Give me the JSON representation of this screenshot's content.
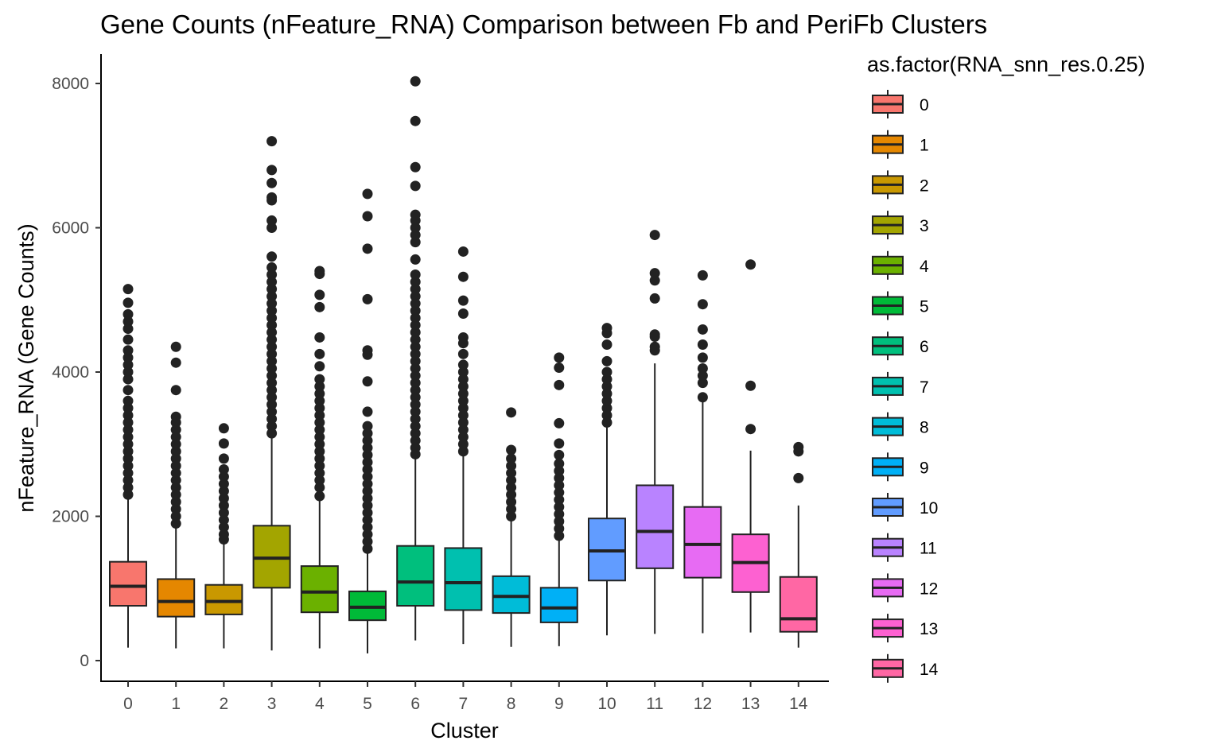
{
  "chart_data": {
    "type": "box",
    "title": "Gene Counts (nFeature_RNA) Comparison between Fb and PeriFb Clusters",
    "xlabel": "Cluster",
    "ylabel": "nFeature_RNA (Gene Counts)",
    "ylim": [
      -300,
      8300
    ],
    "yticks": [
      0,
      2000,
      4000,
      6000,
      8000
    ],
    "grid": false,
    "legend": {
      "title": "as.factor(RNA_snn_res.0.25)",
      "position": "right"
    },
    "categories": [
      "0",
      "1",
      "2",
      "3",
      "4",
      "5",
      "6",
      "7",
      "8",
      "9",
      "10",
      "11",
      "12",
      "13",
      "14"
    ],
    "colors": [
      "#F8766D",
      "#E58700",
      "#C99800",
      "#A3A500",
      "#6BB100",
      "#00BA38",
      "#00BF7D",
      "#00C0AF",
      "#00BCD8",
      "#00B0F6",
      "#619CFF",
      "#B983FF",
      "#E76BF3",
      "#FD61D1",
      "#FF67A4"
    ],
    "boxes": [
      {
        "cluster": "0",
        "min": 180,
        "q1": 760,
        "median": 1030,
        "q3": 1370,
        "max": 2260,
        "outliers": [
          2300,
          2400,
          2500,
          2600,
          2700,
          2800,
          2900,
          3000,
          3100,
          3200,
          3300,
          3400,
          3500,
          3600,
          3750,
          3900,
          4000,
          4100,
          4200,
          4300,
          4450,
          4600,
          4700,
          4800,
          4960,
          5150
        ]
      },
      {
        "cluster": "1",
        "min": 170,
        "q1": 610,
        "median": 820,
        "q3": 1130,
        "max": 1880,
        "outliers": [
          1900,
          2000,
          2100,
          2200,
          2300,
          2400,
          2500,
          2600,
          2700,
          2800,
          2900,
          3000,
          3100,
          3200,
          3300,
          3380,
          3750,
          4130,
          4350
        ]
      },
      {
        "cluster": "2",
        "min": 170,
        "q1": 640,
        "median": 820,
        "q3": 1050,
        "max": 1640,
        "outliers": [
          1680,
          1750,
          1850,
          1950,
          2050,
          2150,
          2250,
          2350,
          2450,
          2550,
          2650,
          2800,
          3010,
          3220
        ]
      },
      {
        "cluster": "3",
        "min": 140,
        "q1": 1010,
        "median": 1420,
        "q3": 1870,
        "max": 3120,
        "outliers": [
          3150,
          3250,
          3350,
          3450,
          3550,
          3650,
          3750,
          3850,
          3950,
          4050,
          4150,
          4250,
          4350,
          4450,
          4550,
          4650,
          4750,
          4850,
          4950,
          5050,
          5150,
          5250,
          5350,
          5450,
          5600,
          6000,
          6100,
          6380,
          6420,
          6620,
          6800,
          7200
        ]
      },
      {
        "cluster": "4",
        "min": 170,
        "q1": 670,
        "median": 950,
        "q3": 1310,
        "max": 2240,
        "outliers": [
          2280,
          2400,
          2500,
          2600,
          2700,
          2800,
          2900,
          3000,
          3100,
          3200,
          3300,
          3400,
          3500,
          3600,
          3700,
          3800,
          3900,
          4080,
          4250,
          4480,
          4900,
          5070,
          5360,
          5400
        ]
      },
      {
        "cluster": "5",
        "min": 100,
        "q1": 560,
        "median": 740,
        "q3": 960,
        "max": 1510,
        "outliers": [
          1550,
          1650,
          1750,
          1850,
          1950,
          2050,
          2150,
          2250,
          2350,
          2450,
          2550,
          2650,
          2750,
          2850,
          2950,
          3050,
          3150,
          3250,
          3450,
          3870,
          4240,
          4300,
          5010,
          5710,
          6160,
          6470
        ]
      },
      {
        "cluster": "6",
        "min": 280,
        "q1": 760,
        "median": 1090,
        "q3": 1590,
        "max": 2820,
        "outliers": [
          2860,
          2950,
          3050,
          3150,
          3250,
          3350,
          3450,
          3550,
          3650,
          3750,
          3850,
          3950,
          4050,
          4150,
          4250,
          4350,
          4450,
          4550,
          4650,
          4750,
          4850,
          4950,
          5050,
          5150,
          5250,
          5350,
          5560,
          5800,
          5900,
          6000,
          6100,
          6180,
          6580,
          6840,
          7480,
          8030
        ]
      },
      {
        "cluster": "7",
        "min": 230,
        "q1": 700,
        "median": 1080,
        "q3": 1560,
        "max": 2860,
        "outliers": [
          2900,
          3000,
          3100,
          3200,
          3300,
          3400,
          3500,
          3600,
          3700,
          3800,
          3900,
          4000,
          4100,
          4250,
          4400,
          4480,
          4810,
          4990,
          5320,
          5670
        ]
      },
      {
        "cluster": "8",
        "min": 190,
        "q1": 660,
        "median": 890,
        "q3": 1170,
        "max": 1960,
        "outliers": [
          2000,
          2100,
          2200,
          2300,
          2400,
          2500,
          2600,
          2700,
          2800,
          2920,
          3440
        ]
      },
      {
        "cluster": "9",
        "min": 200,
        "q1": 530,
        "median": 730,
        "q3": 1010,
        "max": 1690,
        "outliers": [
          1730,
          1830,
          1930,
          2030,
          2130,
          2230,
          2330,
          2430,
          2530,
          2630,
          2730,
          2850,
          3010,
          3290,
          3820,
          4060,
          4200
        ]
      },
      {
        "cluster": "10",
        "min": 350,
        "q1": 1110,
        "median": 1520,
        "q3": 1970,
        "max": 3270,
        "outliers": [
          3300,
          3400,
          3500,
          3600,
          3700,
          3800,
          3900,
          4000,
          4150,
          4380,
          4540,
          4610
        ]
      },
      {
        "cluster": "11",
        "min": 370,
        "q1": 1280,
        "median": 1790,
        "q3": 2430,
        "max": 4120,
        "outliers": [
          4300,
          4350,
          4490,
          4520,
          5020,
          5270,
          5370,
          5900
        ]
      },
      {
        "cluster": "12",
        "min": 380,
        "q1": 1150,
        "median": 1610,
        "q3": 2130,
        "max": 3610,
        "outliers": [
          3650,
          3850,
          3950,
          4050,
          4200,
          4380,
          4590,
          4940,
          5340
        ]
      },
      {
        "cluster": "13",
        "min": 390,
        "q1": 950,
        "median": 1360,
        "q3": 1750,
        "max": 2910,
        "outliers": [
          3210,
          3810,
          5490
        ]
      },
      {
        "cluster": "14",
        "min": 180,
        "q1": 400,
        "median": 580,
        "q3": 1160,
        "max": 2150,
        "outliers": [
          2530,
          2900,
          2960
        ]
      }
    ]
  }
}
